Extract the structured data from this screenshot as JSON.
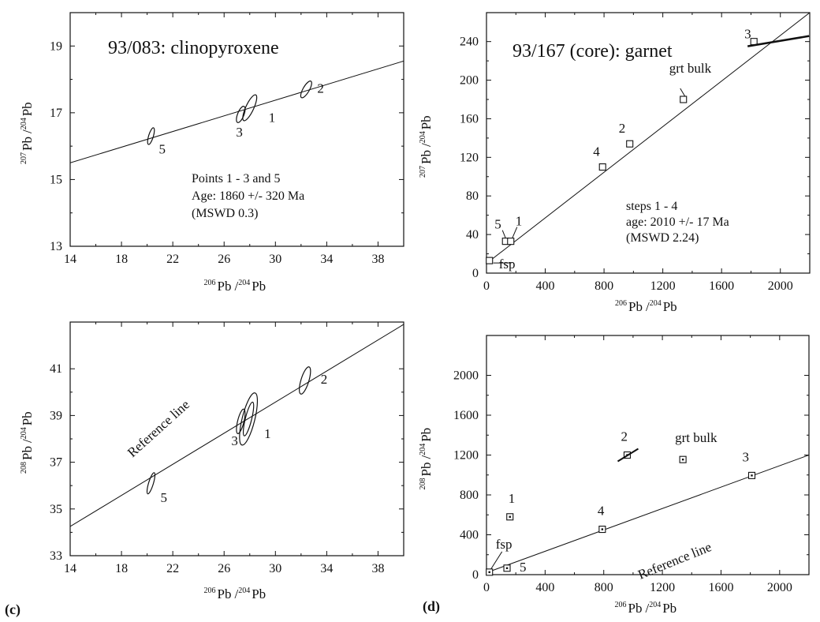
{
  "figure": {
    "label_c": "(c)",
    "label_d": "(d)"
  },
  "axis_text": {
    "pb206_super": "206",
    "pb207_super": "207",
    "pb208_super": "208",
    "pb204_super": "204",
    "pb": "Pb",
    "slash": "/"
  },
  "chart_data": [
    {
      "id": "a",
      "type": "scatter",
      "title": "93/083: clinopyroxene",
      "xlabel": "206Pb / 204Pb",
      "ylabel": "207Pb / 204Pb",
      "xlim": [
        14,
        40
      ],
      "ylim": [
        13,
        20
      ],
      "xticks": [
        14,
        18,
        22,
        26,
        30,
        34,
        38
      ],
      "yticks": [
        13,
        15,
        17,
        19
      ],
      "reference_line": {
        "x": [
          14,
          40
        ],
        "y": [
          15.5,
          18.55
        ]
      },
      "points": [
        {
          "label": "1",
          "x": 28.0,
          "y": 17.15
        },
        {
          "label": "2",
          "x": 32.4,
          "y": 17.7
        },
        {
          "label": "3",
          "x": 27.3,
          "y": 16.95
        },
        {
          "label": "5",
          "x": 20.3,
          "y": 16.3
        }
      ],
      "annotation": [
        "Points 1 - 3 and 5",
        "Age: 1860 +/- 320 Ma",
        "(MSWD 0.3)"
      ]
    },
    {
      "id": "b",
      "type": "scatter",
      "title": "93/167 (core): garnet",
      "xlabel": "206Pb / 204Pb",
      "ylabel": "207Pb / 204Pb",
      "xlim": [
        0,
        2200
      ],
      "ylim": [
        0,
        270
      ],
      "xticks": [
        0,
        400,
        800,
        1200,
        1600,
        2000
      ],
      "yticks": [
        0,
        40,
        80,
        120,
        160,
        200,
        240
      ],
      "reference_line": {
        "x": [
          0,
          2200
        ],
        "y": [
          10,
          270
        ]
      },
      "points": [
        {
          "label": "fsp",
          "x": 20,
          "y": 13
        },
        {
          "label": "5",
          "x": 130,
          "y": 33
        },
        {
          "label": "1",
          "x": 165,
          "y": 33
        },
        {
          "label": "4",
          "x": 790,
          "y": 110
        },
        {
          "label": "2",
          "x": 975,
          "y": 134
        },
        {
          "label": "grt bulk",
          "x": 1340,
          "y": 180
        },
        {
          "label": "3",
          "x": 1820,
          "y": 240
        }
      ],
      "annotation": [
        "steps 1 - 4",
        "age: 2010 +/- 17 Ma",
        "(MSWD 2.24)"
      ]
    },
    {
      "id": "c",
      "type": "scatter",
      "title": "",
      "xlabel": "206Pb / 204Pb",
      "ylabel": "208Pb / 204Pb",
      "xlim": [
        14,
        40
      ],
      "ylim": [
        33,
        43
      ],
      "xticks": [
        14,
        18,
        22,
        26,
        30,
        34,
        38
      ],
      "yticks": [
        33,
        35,
        37,
        39,
        41
      ],
      "reference_line": {
        "x": [
          14,
          40
        ],
        "y": [
          34.25,
          42.9
        ]
      },
      "reference_label": "Reference line",
      "points": [
        {
          "label": "1",
          "x": 27.9,
          "y": 38.85
        },
        {
          "label": "2",
          "x": 32.3,
          "y": 40.5
        },
        {
          "label": "3",
          "x": 27.3,
          "y": 38.75
        },
        {
          "label": "5",
          "x": 20.3,
          "y": 36.1
        }
      ]
    },
    {
      "id": "d",
      "type": "scatter",
      "title": "",
      "xlabel": "206Pb / 204Pb",
      "ylabel": "208Pb / 204Pb",
      "xlim": [
        0,
        2200
      ],
      "ylim": [
        0,
        2400
      ],
      "xticks": [
        0,
        400,
        800,
        1200,
        1600,
        2000
      ],
      "yticks": [
        0,
        400,
        800,
        1200,
        1600,
        2000
      ],
      "reference_line": {
        "x": [
          0,
          2200
        ],
        "y": [
          20,
          1200
        ]
      },
      "reference_label": "Reference line",
      "points": [
        {
          "label": "fsp",
          "x": 20,
          "y": 25
        },
        {
          "label": "5",
          "x": 140,
          "y": 65
        },
        {
          "label": "1",
          "x": 160,
          "y": 580
        },
        {
          "label": "4",
          "x": 790,
          "y": 455
        },
        {
          "label": "2",
          "x": 960,
          "y": 1200
        },
        {
          "label": "grt bulk",
          "x": 1340,
          "y": 1155
        },
        {
          "label": "3",
          "x": 1810,
          "y": 995
        }
      ]
    }
  ]
}
